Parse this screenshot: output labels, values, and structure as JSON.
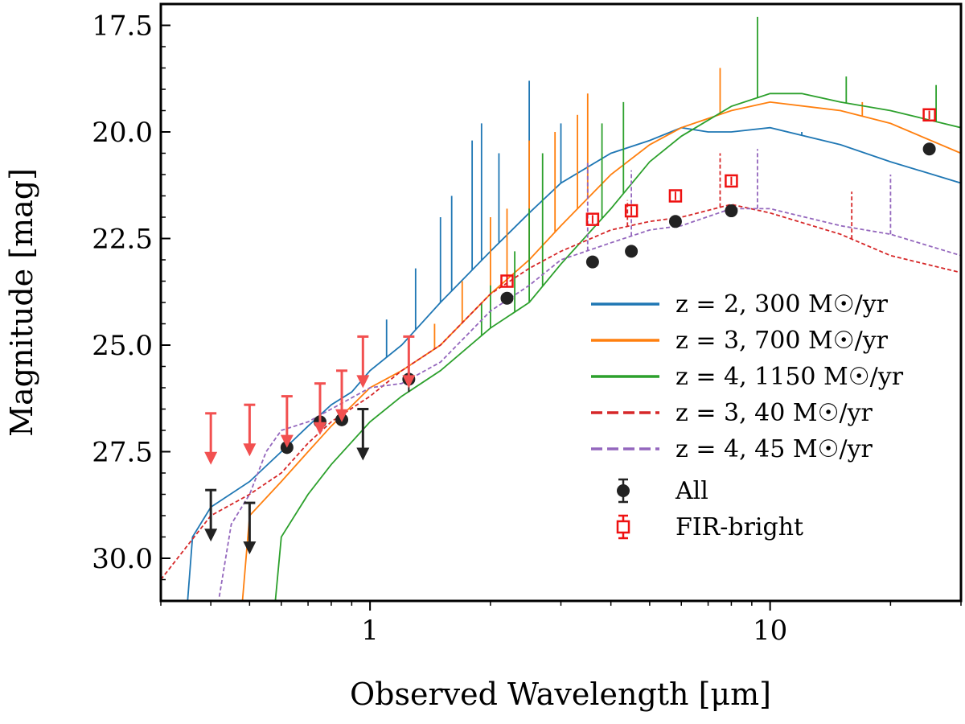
{
  "chart_data": {
    "type": "line",
    "xlabel": "Observed Wavelength [μm]",
    "ylabel": "Magnitude [mag]",
    "xscale": "log",
    "xlim": [
      0.3,
      30
    ],
    "ylim": [
      31.0,
      17.0
    ],
    "y_inverted": true,
    "yticks": [
      {
        "value": 17.5,
        "label": "17.5"
      },
      {
        "value": 20.0,
        "label": "20.0"
      },
      {
        "value": 22.5,
        "label": "22.5"
      },
      {
        "value": 25.0,
        "label": "25.0"
      },
      {
        "value": 27.5,
        "label": "27.5"
      },
      {
        "value": 30.0,
        "label": "30.0"
      }
    ],
    "xticks": [
      {
        "value": 1,
        "label": "1"
      },
      {
        "value": 10,
        "label": "10"
      }
    ],
    "legend_position": "lower-right",
    "series": [
      {
        "name": "z = 2,  300 M☉/yr",
        "style": "solid",
        "color": "#1f77b4",
        "points": [
          [
            0.35,
            31.0
          ],
          [
            0.36,
            29.5
          ],
          [
            0.4,
            28.8
          ],
          [
            0.5,
            28.2
          ],
          [
            0.6,
            27.5
          ],
          [
            0.7,
            26.9
          ],
          [
            0.8,
            26.4
          ],
          [
            0.9,
            26.1
          ],
          [
            1.0,
            25.6
          ],
          [
            1.2,
            25.0
          ],
          [
            1.5,
            24.0
          ],
          [
            2.0,
            22.8
          ],
          [
            2.5,
            21.9
          ],
          [
            3.0,
            21.2
          ],
          [
            4.0,
            20.5
          ],
          [
            5.0,
            20.2
          ],
          [
            6.0,
            19.9
          ],
          [
            7.0,
            20.0
          ],
          [
            8.0,
            20.0
          ],
          [
            10.0,
            19.9
          ],
          [
            15.0,
            20.3
          ],
          [
            20.0,
            20.7
          ],
          [
            30.0,
            21.2
          ]
        ],
        "spikes": [
          [
            1.1,
            24.4
          ],
          [
            1.3,
            23.2
          ],
          [
            1.5,
            22.0
          ],
          [
            1.6,
            21.5
          ],
          [
            1.8,
            20.2
          ],
          [
            1.9,
            19.8
          ],
          [
            2.1,
            20.5
          ],
          [
            2.5,
            18.8
          ],
          [
            3.0,
            19.8
          ],
          [
            12.0,
            20.0
          ]
        ]
      },
      {
        "name": "z = 3,  700 M☉/yr",
        "style": "solid",
        "color": "#ff7f0e",
        "points": [
          [
            0.48,
            31.0
          ],
          [
            0.5,
            29.0
          ],
          [
            0.6,
            28.2
          ],
          [
            0.7,
            27.5
          ],
          [
            0.8,
            26.9
          ],
          [
            1.0,
            26.0
          ],
          [
            1.2,
            25.6
          ],
          [
            1.5,
            25.0
          ],
          [
            2.0,
            23.8
          ],
          [
            2.5,
            23.0
          ],
          [
            3.0,
            22.2
          ],
          [
            4.0,
            21.0
          ],
          [
            5.0,
            20.3
          ],
          [
            6.0,
            19.9
          ],
          [
            8.0,
            19.5
          ],
          [
            10.0,
            19.3
          ],
          [
            15.0,
            19.5
          ],
          [
            20.0,
            19.8
          ],
          [
            30.0,
            20.5
          ]
        ],
        "spikes": [
          [
            1.45,
            24.5
          ],
          [
            1.7,
            23.5
          ],
          [
            2.0,
            22.0
          ],
          [
            2.2,
            21.8
          ],
          [
            2.5,
            20.2
          ],
          [
            2.9,
            20.0
          ],
          [
            3.3,
            19.6
          ],
          [
            3.5,
            19.1
          ],
          [
            7.5,
            18.5
          ],
          [
            17.0,
            19.3
          ]
        ]
      },
      {
        "name": "z = 4,  1150 M☉/yr",
        "style": "solid",
        "color": "#2ca02c",
        "points": [
          [
            0.58,
            31.0
          ],
          [
            0.6,
            29.5
          ],
          [
            0.7,
            28.5
          ],
          [
            0.8,
            27.8
          ],
          [
            1.0,
            26.8
          ],
          [
            1.2,
            26.2
          ],
          [
            1.5,
            25.6
          ],
          [
            2.0,
            24.6
          ],
          [
            2.5,
            24.0
          ],
          [
            3.0,
            23.1
          ],
          [
            4.0,
            21.8
          ],
          [
            5.0,
            20.7
          ],
          [
            6.0,
            20.1
          ],
          [
            8.0,
            19.4
          ],
          [
            10.0,
            19.1
          ],
          [
            12.0,
            19.1
          ],
          [
            15.0,
            19.3
          ],
          [
            20.0,
            19.5
          ],
          [
            30.0,
            19.9
          ]
        ],
        "spikes": [
          [
            1.9,
            24.0
          ],
          [
            2.0,
            23.6
          ],
          [
            2.3,
            22.8
          ],
          [
            2.5,
            21.8
          ],
          [
            2.7,
            20.5
          ],
          [
            3.8,
            19.8
          ],
          [
            4.3,
            19.3
          ],
          [
            9.3,
            17.3
          ],
          [
            15.5,
            18.7
          ],
          [
            26.0,
            18.9
          ]
        ]
      },
      {
        "name": "z = 3,  40 M☉/yr",
        "style": "dashed",
        "color": "#d62728",
        "points": [
          [
            0.3,
            30.5
          ],
          [
            0.4,
            29.0
          ],
          [
            0.5,
            28.5
          ],
          [
            0.6,
            28.0
          ],
          [
            0.7,
            27.3
          ],
          [
            0.8,
            26.8
          ],
          [
            1.0,
            26.2
          ],
          [
            1.2,
            25.6
          ],
          [
            1.5,
            25.0
          ],
          [
            2.0,
            23.8
          ],
          [
            2.5,
            23.2
          ],
          [
            3.0,
            22.8
          ],
          [
            4.0,
            22.3
          ],
          [
            5.0,
            22.1
          ],
          [
            6.0,
            22.0
          ],
          [
            8.0,
            21.7
          ],
          [
            10.0,
            21.9
          ],
          [
            15.0,
            22.4
          ],
          [
            20.0,
            22.9
          ],
          [
            30.0,
            23.3
          ]
        ],
        "spikes": [
          [
            4.4,
            21.6
          ],
          [
            7.5,
            20.5
          ],
          [
            16.0,
            21.4
          ]
        ]
      },
      {
        "name": "z = 4,  45 M☉/yr",
        "style": "dashed",
        "color": "#9467bd",
        "points": [
          [
            0.42,
            30.9
          ],
          [
            0.45,
            29.2
          ],
          [
            0.5,
            28.5
          ],
          [
            0.55,
            27.5
          ],
          [
            0.6,
            27.0
          ],
          [
            0.7,
            26.8
          ],
          [
            0.8,
            26.5
          ],
          [
            1.0,
            26.0
          ],
          [
            1.2,
            25.9
          ],
          [
            1.5,
            25.4
          ],
          [
            2.0,
            24.2
          ],
          [
            2.5,
            23.6
          ],
          [
            3.0,
            23.0
          ],
          [
            4.0,
            22.6
          ],
          [
            5.0,
            22.3
          ],
          [
            6.0,
            22.2
          ],
          [
            8.0,
            21.8
          ],
          [
            10.0,
            21.8
          ],
          [
            15.0,
            22.2
          ],
          [
            20.0,
            22.4
          ],
          [
            30.0,
            22.9
          ]
        ],
        "spikes": [
          [
            3.5,
            20.7
          ],
          [
            4.5,
            20.9
          ],
          [
            9.3,
            20.4
          ],
          [
            20.0,
            21.0
          ]
        ]
      }
    ],
    "points": [
      {
        "name": "All",
        "marker": "filled-circle",
        "color": "#222222",
        "data": [
          [
            0.62,
            27.4
          ],
          [
            0.75,
            26.8
          ],
          [
            0.85,
            26.75
          ],
          [
            1.25,
            25.8
          ],
          [
            2.2,
            23.9
          ],
          [
            3.6,
            23.05
          ],
          [
            4.5,
            22.8
          ],
          [
            5.8,
            22.1
          ],
          [
            8.0,
            21.85
          ],
          [
            25.0,
            20.4
          ]
        ],
        "yerr": [
          0.15,
          0.15,
          0.15,
          0.3,
          0.1,
          0.05,
          0.08,
          0.1,
          0.1,
          0.08
        ],
        "upper_limits": [
          [
            0.4,
            28.4
          ],
          [
            0.5,
            28.7
          ],
          [
            0.96,
            26.5
          ]
        ]
      },
      {
        "name": "FIR-bright",
        "marker": "open-square",
        "color": "#ee1111",
        "data": [
          [
            2.2,
            23.5
          ],
          [
            3.6,
            22.05
          ],
          [
            4.5,
            21.85
          ],
          [
            5.8,
            21.5
          ],
          [
            8.0,
            21.15
          ],
          [
            25.0,
            19.6
          ]
        ],
        "yerr": [
          0.12,
          0.1,
          0.1,
          0.1,
          0.1,
          0.1
        ],
        "upper_limits": [
          [
            0.4,
            26.6
          ],
          [
            0.5,
            26.4
          ],
          [
            0.62,
            26.2
          ],
          [
            0.75,
            25.9
          ],
          [
            0.85,
            25.6
          ],
          [
            0.96,
            24.8
          ],
          [
            1.25,
            24.8
          ]
        ]
      }
    ]
  }
}
